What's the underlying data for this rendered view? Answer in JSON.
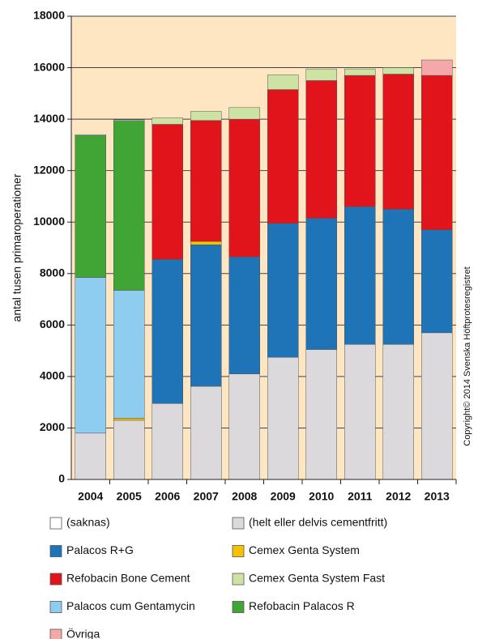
{
  "chart_data": {
    "type": "stacked_bar",
    "y_label": "antal tusen primaroperationer",
    "annotation": "Copyright© 2014 Svenska Höftprotesregistret",
    "categories": [
      "2004",
      "2005",
      "2006",
      "2007",
      "2008",
      "2009",
      "2010",
      "2011",
      "2012",
      "2013"
    ],
    "series": [
      {
        "name": "(saknas)",
        "color": "#ffffff",
        "values": [
          30,
          30,
          0,
          0,
          0,
          0,
          0,
          0,
          0,
          0
        ]
      },
      {
        "name": "(helt eller delvis cementfritt)",
        "color": "#dbd9dc",
        "values": [
          1800,
          2300,
          2950,
          3620,
          4100,
          4750,
          5050,
          5250,
          5250,
          5700
        ]
      },
      {
        "name": "Palacos R+G",
        "color": "#1f74b8",
        "values": [
          0,
          0,
          5600,
          5500,
          4550,
          5200,
          5100,
          5350,
          5250,
          4000
        ]
      },
      {
        "name": "Cemex Genta System",
        "color": "#f5c200",
        "values": [
          0,
          80,
          0,
          130,
          0,
          0,
          0,
          0,
          0,
          0
        ]
      },
      {
        "name": "Refobacin Bone Cement",
        "color": "#e1141c",
        "values": [
          0,
          0,
          5250,
          4700,
          5350,
          5200,
          5350,
          5100,
          5250,
          6000
        ]
      },
      {
        "name": "Cemex Genta System Fast",
        "color": "#cce3a4",
        "values": [
          0,
          0,
          250,
          350,
          450,
          570,
          450,
          250,
          250,
          0
        ]
      },
      {
        "name": "Palacos cum Gentamycin",
        "color": "#8ecdf0",
        "values": [
          6050,
          4970,
          0,
          0,
          0,
          0,
          0,
          0,
          0,
          0
        ]
      },
      {
        "name": "Refobacin Palacos R",
        "color": "#40a535",
        "values": [
          5520,
          6600,
          0,
          0,
          0,
          0,
          0,
          0,
          0,
          0
        ]
      },
      {
        "name": "Övriga",
        "color": "#f4a9a8",
        "values": [
          0,
          0,
          0,
          0,
          0,
          0,
          0,
          0,
          0,
          600
        ]
      }
    ],
    "ylim": [
      0,
      18000
    ],
    "yticks": [
      0,
      2000,
      4000,
      6000,
      8000,
      10000,
      12000,
      14000,
      16000,
      18000
    ],
    "grid": true,
    "background": "#fde6c1"
  }
}
